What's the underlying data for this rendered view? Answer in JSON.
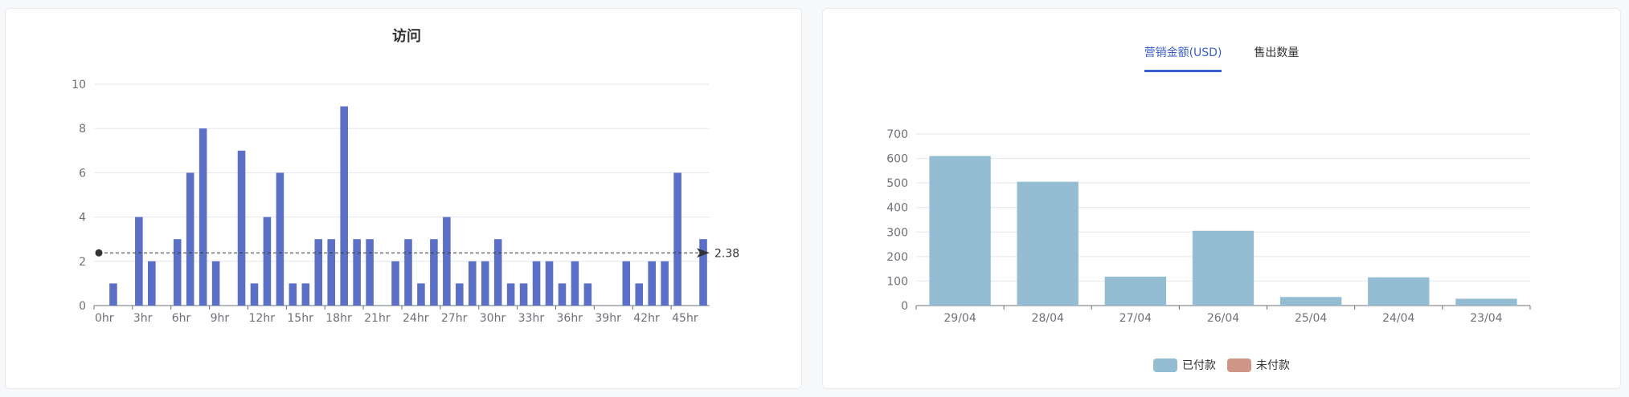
{
  "chart_data": [
    {
      "type": "bar",
      "title": "访问",
      "categories": [
        "0hr",
        "1hr",
        "2hr",
        "3hr",
        "4hr",
        "5hr",
        "6hr",
        "7hr",
        "8hr",
        "9hr",
        "10hr",
        "11hr",
        "12hr",
        "13hr",
        "14hr",
        "15hr",
        "16hr",
        "17hr",
        "18hr",
        "19hr",
        "20hr",
        "21hr",
        "22hr",
        "23hr",
        "24hr",
        "25hr",
        "26hr",
        "27hr",
        "28hr",
        "29hr",
        "30hr",
        "31hr",
        "32hr",
        "33hr",
        "34hr",
        "35hr",
        "36hr",
        "37hr",
        "38hr",
        "39hr",
        "40hr",
        "41hr",
        "42hr",
        "43hr",
        "44hr",
        "45hr",
        "46hr",
        "47hr"
      ],
      "tick_labels": [
        "0hr",
        "3hr",
        "6hr",
        "9hr",
        "12hr",
        "15hr",
        "18hr",
        "21hr",
        "24hr",
        "27hr",
        "30hr",
        "33hr",
        "36hr",
        "39hr",
        "42hr",
        "45hr"
      ],
      "values": [
        0,
        1,
        0,
        4,
        2,
        0,
        3,
        6,
        8,
        2,
        0,
        7,
        1,
        4,
        6,
        1,
        1,
        3,
        3,
        9,
        3,
        3,
        0,
        2,
        3,
        1,
        3,
        4,
        1,
        2,
        2,
        3,
        1,
        1,
        2,
        2,
        1,
        2,
        1,
        0,
        0,
        2,
        1,
        2,
        2,
        6,
        0,
        3
      ],
      "ylim": [
        0,
        10
      ],
      "yticks": [
        0,
        2,
        4,
        6,
        8,
        10
      ],
      "mark_line": {
        "type": "average",
        "value": 2.38,
        "label": "2.38"
      },
      "grid": true,
      "bar_color": "#5b6fc7"
    },
    {
      "type": "bar",
      "categories": [
        "29/04",
        "28/04",
        "27/04",
        "26/04",
        "25/04",
        "24/04",
        "23/04"
      ],
      "series": [
        {
          "name": "已付款",
          "values": [
            610,
            505,
            118,
            305,
            35,
            115,
            28
          ],
          "color": "#94bdd3"
        },
        {
          "name": "未付款",
          "values": [
            0,
            0,
            0,
            0,
            0,
            0,
            0
          ],
          "color": "#d09787"
        }
      ],
      "ylim": [
        0,
        700
      ],
      "yticks": [
        0,
        100,
        200,
        300,
        400,
        500,
        600,
        700
      ],
      "grid": true,
      "legend_position": "bottom-center"
    }
  ],
  "tabs": [
    {
      "label": "营销金额(USD)",
      "active": true
    },
    {
      "label": "售出数量",
      "active": false
    }
  ]
}
